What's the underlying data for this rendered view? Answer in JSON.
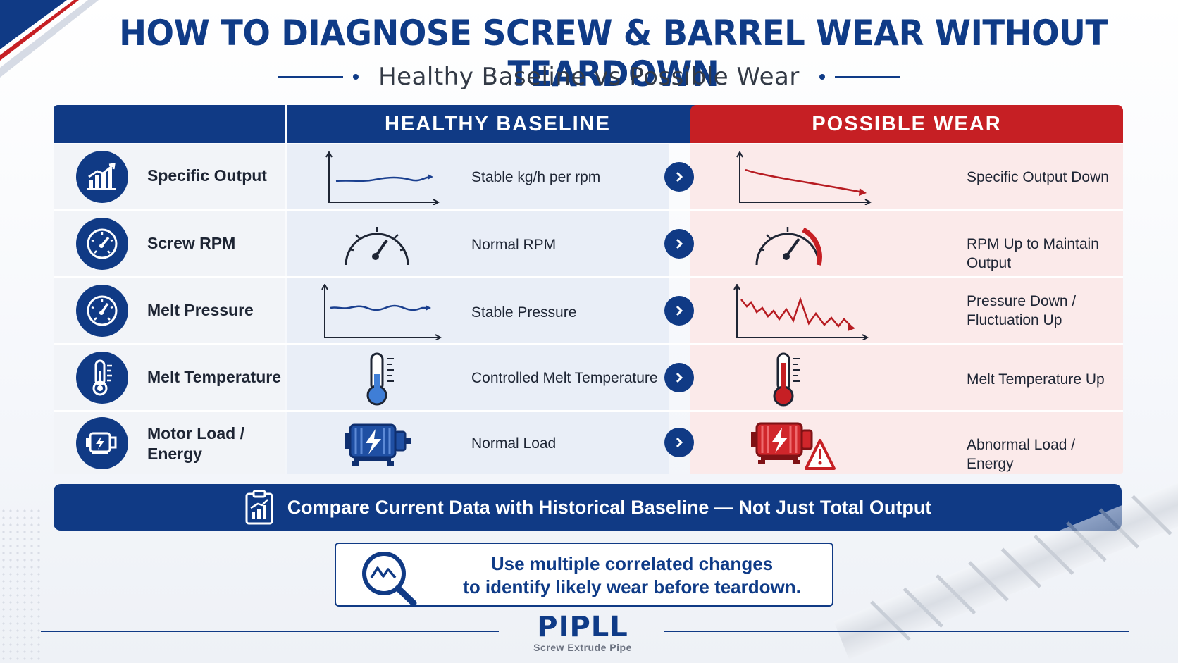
{
  "header": {
    "title": "HOW TO DIAGNOSE SCREW & BARREL WEAR WITHOUT TEARDOWN",
    "subtitle": "Healthy Baseline vs Possible Wear"
  },
  "columns": {
    "healthy": "HEALTHY BASELINE",
    "wear": "POSSIBLE WEAR"
  },
  "rows": [
    {
      "label": "Specific Output",
      "icon": "bar-chart-up-icon",
      "healthy": "Stable kg/h per rpm",
      "healthy_icon": "flat-line-chart-icon",
      "wear": "Specific Output Down",
      "wear_icon": "declining-line-chart-icon"
    },
    {
      "label": "Screw RPM",
      "icon": "gauge-icon",
      "healthy": "Normal RPM",
      "healthy_icon": "gauge-icon",
      "wear": "RPM Up to Maintain Output",
      "wear_icon": "gauge-high-icon"
    },
    {
      "label": "Melt Pressure",
      "icon": "pressure-gauge-icon",
      "healthy": "Stable Pressure",
      "healthy_icon": "wave-line-chart-icon",
      "wear": "Pressure Down /",
      "wear_2": "Fluctuation Up",
      "wear_icon": "fluctuating-line-chart-icon"
    },
    {
      "label": "Melt Temperature",
      "icon": "thermometer-icon",
      "healthy": "Controlled Melt Temperature",
      "healthy_icon": "thermometer-low-icon",
      "wear": "Melt Temperature Up",
      "wear_icon": "thermometer-high-icon"
    },
    {
      "label": "Motor Load /",
      "label_2": "Energy",
      "icon": "motor-icon",
      "healthy": "Normal Load",
      "healthy_icon": "motor-icon",
      "wear": "Abnormal Load / Energy",
      "wear_icon": "motor-warning-icon"
    }
  ],
  "banner": {
    "text": "Compare Current Data with Historical Baseline — Not Just Total Output",
    "icon": "clipboard-chart-icon"
  },
  "note": {
    "line1": "Use multiple correlated changes",
    "line2": "to identify likely wear before teardown.",
    "icon": "magnifier-chart-icon"
  },
  "footer": {
    "logo": "PIPLL",
    "tagline": "Screw Extrude Pipe"
  },
  "colors": {
    "navy": "#103a85",
    "red": "#c61f24",
    "healthy_bg": "#e9eef7",
    "wear_bg": "#fbeaea"
  }
}
